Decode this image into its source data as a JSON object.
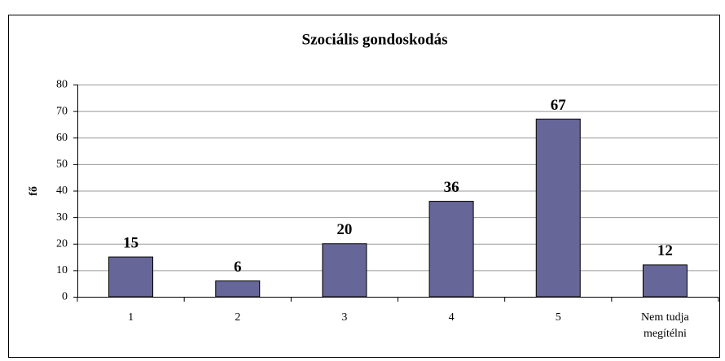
{
  "chart_data": {
    "type": "bar",
    "title": "Szociális gondoskodás",
    "y_label": "fő",
    "categories": [
      "1",
      "2",
      "3",
      "4",
      "5",
      "Nem tudja megítélni"
    ],
    "values": [
      15,
      6,
      20,
      36,
      67,
      12
    ],
    "color": "#666699",
    "ylim": [
      0,
      80
    ],
    "yticks": [
      0,
      10,
      20,
      30,
      40,
      50,
      60,
      70,
      80
    ],
    "grid": true
  }
}
